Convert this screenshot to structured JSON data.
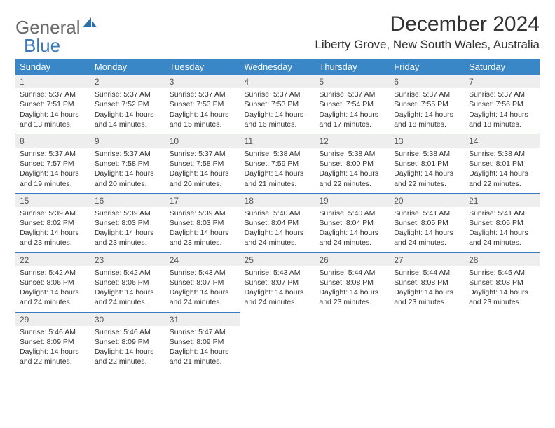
{
  "logo": {
    "word1": "General",
    "word2": "Blue"
  },
  "title": "December 2024",
  "location": "Liberty Grove, New South Wales, Australia",
  "colors": {
    "header_bg": "#3a87c8",
    "header_fg": "#ffffff",
    "rule": "#3a7bbf",
    "daynum_bg": "#eeeeee",
    "text": "#333333",
    "logo_gray": "#6a6a6a",
    "logo_blue": "#3a7bbf"
  },
  "weekdays": [
    "Sunday",
    "Monday",
    "Tuesday",
    "Wednesday",
    "Thursday",
    "Friday",
    "Saturday"
  ],
  "labels": {
    "sunrise": "Sunrise:",
    "sunset": "Sunset:",
    "daylight": "Daylight:"
  },
  "days": [
    {
      "n": 1,
      "sunrise": "5:37 AM",
      "sunset": "7:51 PM",
      "daylight": "14 hours and 13 minutes."
    },
    {
      "n": 2,
      "sunrise": "5:37 AM",
      "sunset": "7:52 PM",
      "daylight": "14 hours and 14 minutes."
    },
    {
      "n": 3,
      "sunrise": "5:37 AM",
      "sunset": "7:53 PM",
      "daylight": "14 hours and 15 minutes."
    },
    {
      "n": 4,
      "sunrise": "5:37 AM",
      "sunset": "7:53 PM",
      "daylight": "14 hours and 16 minutes."
    },
    {
      "n": 5,
      "sunrise": "5:37 AM",
      "sunset": "7:54 PM",
      "daylight": "14 hours and 17 minutes."
    },
    {
      "n": 6,
      "sunrise": "5:37 AM",
      "sunset": "7:55 PM",
      "daylight": "14 hours and 18 minutes."
    },
    {
      "n": 7,
      "sunrise": "5:37 AM",
      "sunset": "7:56 PM",
      "daylight": "14 hours and 18 minutes."
    },
    {
      "n": 8,
      "sunrise": "5:37 AM",
      "sunset": "7:57 PM",
      "daylight": "14 hours and 19 minutes."
    },
    {
      "n": 9,
      "sunrise": "5:37 AM",
      "sunset": "7:58 PM",
      "daylight": "14 hours and 20 minutes."
    },
    {
      "n": 10,
      "sunrise": "5:37 AM",
      "sunset": "7:58 PM",
      "daylight": "14 hours and 20 minutes."
    },
    {
      "n": 11,
      "sunrise": "5:38 AM",
      "sunset": "7:59 PM",
      "daylight": "14 hours and 21 minutes."
    },
    {
      "n": 12,
      "sunrise": "5:38 AM",
      "sunset": "8:00 PM",
      "daylight": "14 hours and 22 minutes."
    },
    {
      "n": 13,
      "sunrise": "5:38 AM",
      "sunset": "8:01 PM",
      "daylight": "14 hours and 22 minutes."
    },
    {
      "n": 14,
      "sunrise": "5:38 AM",
      "sunset": "8:01 PM",
      "daylight": "14 hours and 22 minutes."
    },
    {
      "n": 15,
      "sunrise": "5:39 AM",
      "sunset": "8:02 PM",
      "daylight": "14 hours and 23 minutes."
    },
    {
      "n": 16,
      "sunrise": "5:39 AM",
      "sunset": "8:03 PM",
      "daylight": "14 hours and 23 minutes."
    },
    {
      "n": 17,
      "sunrise": "5:39 AM",
      "sunset": "8:03 PM",
      "daylight": "14 hours and 23 minutes."
    },
    {
      "n": 18,
      "sunrise": "5:40 AM",
      "sunset": "8:04 PM",
      "daylight": "14 hours and 24 minutes."
    },
    {
      "n": 19,
      "sunrise": "5:40 AM",
      "sunset": "8:04 PM",
      "daylight": "14 hours and 24 minutes."
    },
    {
      "n": 20,
      "sunrise": "5:41 AM",
      "sunset": "8:05 PM",
      "daylight": "14 hours and 24 minutes."
    },
    {
      "n": 21,
      "sunrise": "5:41 AM",
      "sunset": "8:05 PM",
      "daylight": "14 hours and 24 minutes."
    },
    {
      "n": 22,
      "sunrise": "5:42 AM",
      "sunset": "8:06 PM",
      "daylight": "14 hours and 24 minutes."
    },
    {
      "n": 23,
      "sunrise": "5:42 AM",
      "sunset": "8:06 PM",
      "daylight": "14 hours and 24 minutes."
    },
    {
      "n": 24,
      "sunrise": "5:43 AM",
      "sunset": "8:07 PM",
      "daylight": "14 hours and 24 minutes."
    },
    {
      "n": 25,
      "sunrise": "5:43 AM",
      "sunset": "8:07 PM",
      "daylight": "14 hours and 24 minutes."
    },
    {
      "n": 26,
      "sunrise": "5:44 AM",
      "sunset": "8:08 PM",
      "daylight": "14 hours and 23 minutes."
    },
    {
      "n": 27,
      "sunrise": "5:44 AM",
      "sunset": "8:08 PM",
      "daylight": "14 hours and 23 minutes."
    },
    {
      "n": 28,
      "sunrise": "5:45 AM",
      "sunset": "8:08 PM",
      "daylight": "14 hours and 23 minutes."
    },
    {
      "n": 29,
      "sunrise": "5:46 AM",
      "sunset": "8:09 PM",
      "daylight": "14 hours and 22 minutes."
    },
    {
      "n": 30,
      "sunrise": "5:46 AM",
      "sunset": "8:09 PM",
      "daylight": "14 hours and 22 minutes."
    },
    {
      "n": 31,
      "sunrise": "5:47 AM",
      "sunset": "8:09 PM",
      "daylight": "14 hours and 21 minutes."
    }
  ],
  "layout": {
    "start_weekday": 0,
    "rows": 5,
    "cols": 7
  }
}
